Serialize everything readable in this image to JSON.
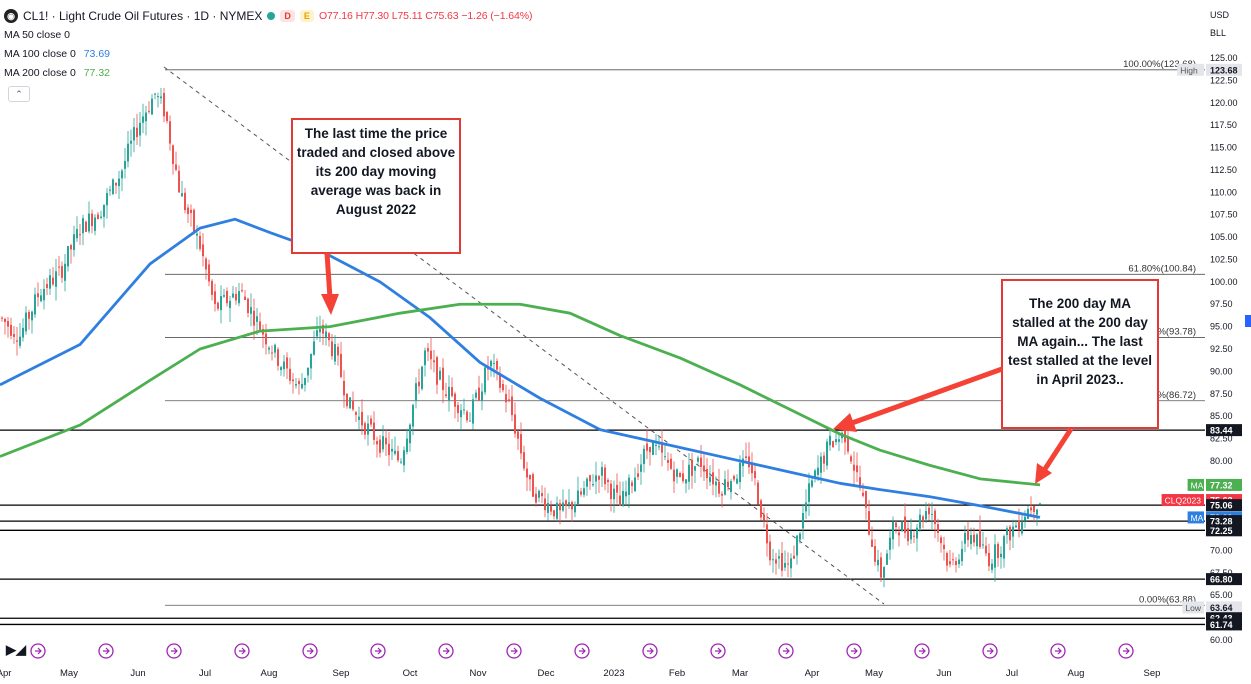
{
  "header": {
    "symbol_icon": "oil-drop-icon",
    "title": "CL1! · Light Crude Oil Futures · 1D · NYMEX",
    "tag_d": "D",
    "tag_e": "E",
    "open": "O77.16",
    "high": "H77.30",
    "low": "L75.11",
    "close": "C75.63",
    "change": "−1.26 (−1.64%)"
  },
  "indicators": {
    "ma50": {
      "label": "MA 50 close 0",
      "value": ""
    },
    "ma100": {
      "label": "MA 100 close 0",
      "value": "73.69",
      "color": "#2f7fe0"
    },
    "ma200": {
      "label": "MA 200 close 0",
      "value": "77.32",
      "color": "#4caf50"
    }
  },
  "currency": {
    "ccy": "USD",
    "unit": "BLL"
  },
  "chart_data": {
    "type": "candlestick",
    "y_ticks": [
      "125.00",
      "122.50",
      "120.00",
      "117.50",
      "115.00",
      "112.50",
      "110.00",
      "107.50",
      "105.00",
      "102.50",
      "100.00",
      "97.50",
      "95.00",
      "92.50",
      "90.00",
      "87.50",
      "85.00",
      "82.50",
      "80.00",
      "77.50",
      "75.00",
      "72.50",
      "70.00",
      "67.50",
      "65.00",
      "62.50",
      "60.00"
    ],
    "ylim": [
      60,
      126.5
    ],
    "x_labels": [
      "Apr",
      "May",
      "Jun",
      "Jul",
      "Aug",
      "Sep",
      "Oct",
      "Nov",
      "Dec",
      "2023",
      "Feb",
      "Mar",
      "Apr",
      "May",
      "Jun",
      "Jul",
      "Aug",
      "Sep"
    ],
    "price_badges": [
      {
        "text": "123.68",
        "value": 123.68,
        "color": "#e3e5ea",
        "text_color": "#131722"
      },
      {
        "text": "83.44",
        "value": 83.44,
        "color": "#131722",
        "text_color": "#ffffff"
      },
      {
        "text": "77.32",
        "value": 77.32,
        "color": "#4caf50",
        "text_color": "#ffffff"
      },
      {
        "text": "75.63",
        "value": 75.63,
        "color": "#f23645",
        "text_color": "#ffffff"
      },
      {
        "text": "75.06",
        "value": 75.06,
        "color": "#131722",
        "text_color": "#ffffff"
      },
      {
        "text": "73.69",
        "value": 73.69,
        "color": "#2f7fe0",
        "text_color": "#ffffff"
      },
      {
        "text": "73.28",
        "value": 73.28,
        "color": "#131722",
        "text_color": "#ffffff"
      },
      {
        "text": "72.25",
        "value": 72.25,
        "color": "#131722",
        "text_color": "#ffffff"
      },
      {
        "text": "66.80",
        "value": 66.8,
        "color": "#131722",
        "text_color": "#ffffff"
      },
      {
        "text": "63.64",
        "value": 63.64,
        "color": "#e3e5ea",
        "text_color": "#131722"
      },
      {
        "text": "62.43",
        "value": 62.43,
        "color": "#131722",
        "text_color": "#ffffff"
      },
      {
        "text": "61.74",
        "value": 61.74,
        "color": "#131722",
        "text_color": "#ffffff"
      }
    ],
    "side_tags": [
      {
        "text": "High",
        "value": 123.68
      },
      {
        "text": "Low",
        "value": 63.64
      },
      {
        "text": "CLQ2023",
        "value": 75.63
      },
      {
        "text": "MA",
        "value": 77.32
      },
      {
        "text": "MA",
        "value": 73.69
      }
    ],
    "fib_levels": [
      {
        "label": "100.00%(123.68)",
        "value": 123.68
      },
      {
        "label": "61.80%(100.84)",
        "value": 100.84
      },
      {
        "label": "%(93.78)",
        "value": 93.78
      },
      {
        "label": "%(86.72)",
        "value": 86.72
      },
      {
        "label": "0.00%(63.88)",
        "value": 63.88
      }
    ],
    "horizontal_levels": [
      83.44,
      75.06,
      73.28,
      72.25,
      66.8,
      62.43,
      61.74
    ],
    "ma100_series": [
      [
        0,
        88.5
      ],
      [
        80,
        93
      ],
      [
        150,
        102
      ],
      [
        200,
        106
      ],
      [
        235,
        107
      ],
      [
        270,
        105.5
      ],
      [
        320,
        103.5
      ],
      [
        380,
        100
      ],
      [
        430,
        96
      ],
      [
        480,
        91
      ],
      [
        540,
        87
      ],
      [
        600,
        83.5
      ],
      [
        660,
        82
      ],
      [
        720,
        80.5
      ],
      [
        780,
        79
      ],
      [
        840,
        77.5
      ],
      [
        880,
        76.8
      ],
      [
        930,
        76
      ],
      [
        980,
        75
      ],
      [
        1040,
        73.69
      ]
    ],
    "ma200_series": [
      [
        0,
        80.5
      ],
      [
        80,
        84
      ],
      [
        150,
        89
      ],
      [
        200,
        92.5
      ],
      [
        260,
        94.5
      ],
      [
        330,
        95
      ],
      [
        400,
        96.5
      ],
      [
        460,
        97.5
      ],
      [
        520,
        97.5
      ],
      [
        570,
        96.5
      ],
      [
        620,
        94
      ],
      [
        680,
        91.5
      ],
      [
        740,
        88.5
      ],
      [
        800,
        85.2
      ],
      [
        840,
        83
      ],
      [
        880,
        81.2
      ],
      [
        930,
        79.5
      ],
      [
        980,
        78
      ],
      [
        1040,
        77.32
      ]
    ],
    "price_path": [
      [
        0,
        96
      ],
      [
        20,
        94
      ],
      [
        40,
        99
      ],
      [
        60,
        101
      ],
      [
        80,
        106
      ],
      [
        100,
        108
      ],
      [
        120,
        112
      ],
      [
        140,
        118
      ],
      [
        155,
        121
      ],
      [
        165,
        119
      ],
      [
        180,
        110
      ],
      [
        200,
        104
      ],
      [
        215,
        97
      ],
      [
        240,
        99
      ],
      [
        260,
        95
      ],
      [
        280,
        91
      ],
      [
        300,
        88
      ],
      [
        320,
        95
      ],
      [
        335,
        92
      ],
      [
        350,
        86
      ],
      [
        380,
        82
      ],
      [
        400,
        80
      ],
      [
        425,
        92
      ],
      [
        445,
        88
      ],
      [
        470,
        85
      ],
      [
        490,
        91
      ],
      [
        510,
        86
      ],
      [
        530,
        77
      ],
      [
        560,
        74
      ],
      [
        580,
        76
      ],
      [
        600,
        79
      ],
      [
        620,
        75
      ],
      [
        650,
        82
      ],
      [
        680,
        78
      ],
      [
        700,
        80
      ],
      [
        720,
        77
      ],
      [
        750,
        80
      ],
      [
        770,
        70
      ],
      [
        790,
        68
      ],
      [
        810,
        77
      ],
      [
        830,
        82
      ],
      [
        845,
        83
      ],
      [
        860,
        77
      ],
      [
        880,
        67
      ],
      [
        895,
        73
      ],
      [
        910,
        72
      ],
      [
        930,
        75
      ],
      [
        950,
        68
      ],
      [
        970,
        72
      ],
      [
        990,
        69
      ],
      [
        1010,
        72
      ],
      [
        1030,
        75
      ],
      [
        1040,
        75.63
      ]
    ],
    "annotations": [
      {
        "text": "The last time the price traded and closed above its 200 day moving average was back in August 2022"
      },
      {
        "text": "The 200  day MA stalled at the 200 day MA again... The last test stalled at the level in April 2023.."
      }
    ]
  }
}
